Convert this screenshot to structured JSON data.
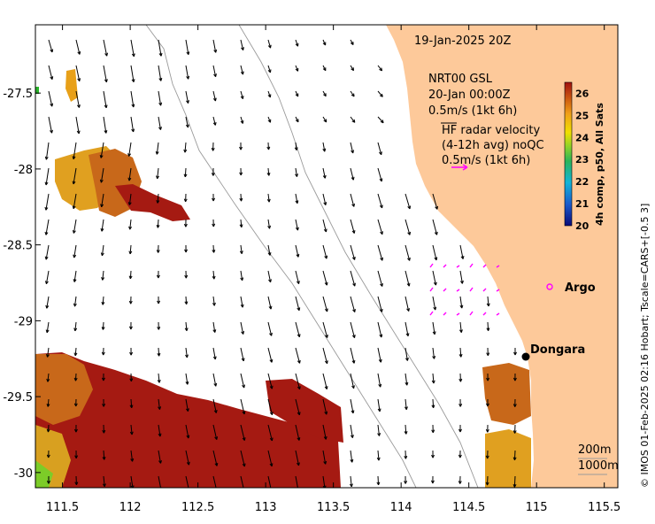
{
  "map": {
    "timestamp": "19-Jan-2025 20Z",
    "model_title": "NRT00 GSL",
    "model_time": "20-Jan 00:00Z",
    "model_scale": "0.5m/s (1kt 6h)",
    "hf_title": "HF radar velocity",
    "hf_subtitle": "(4-12h avg) noQC",
    "hf_scale": "0.5m/s (1kt 6h)",
    "places": [
      {
        "name": "Argo",
        "lon": 115.05,
        "lat": -28.83
      },
      {
        "name": "Dongara",
        "lon": 114.92,
        "lat": -29.25
      }
    ],
    "bathy_labels": [
      "200m",
      "1000m"
    ],
    "credit": "© IMOS 01-Feb-2025 02:16 Hobart; Tscale=CARS+[-0.5 3]",
    "extent": {
      "lon": [
        111.3,
        115.6
      ],
      "lat": [
        -30.1,
        -27.05
      ]
    },
    "colors": {
      "land": "#fdc99a",
      "hf_arrow": "#ff00ff",
      "water": "#ffffff"
    }
  },
  "axes": {
    "x_ticks": [
      "111.5",
      "112",
      "112.5",
      "113",
      "113.5",
      "114",
      "114.5",
      "115",
      "115.5"
    ],
    "x_values": [
      111.5,
      112,
      112.5,
      113,
      113.5,
      114,
      114.5,
      115,
      115.5
    ],
    "y_ticks": [
      "-27.5",
      "-28",
      "-28.5",
      "-29",
      "-29.5",
      "-30"
    ],
    "y_values": [
      -27.5,
      -28,
      -28.5,
      -29,
      -29.5,
      -30
    ]
  },
  "colorbar": {
    "label": "4h comp, p50, All Sats",
    "ticks": [
      "26",
      "25",
      "24",
      "23",
      "22",
      "21",
      "20"
    ],
    "range": [
      20,
      26.5
    ]
  }
}
